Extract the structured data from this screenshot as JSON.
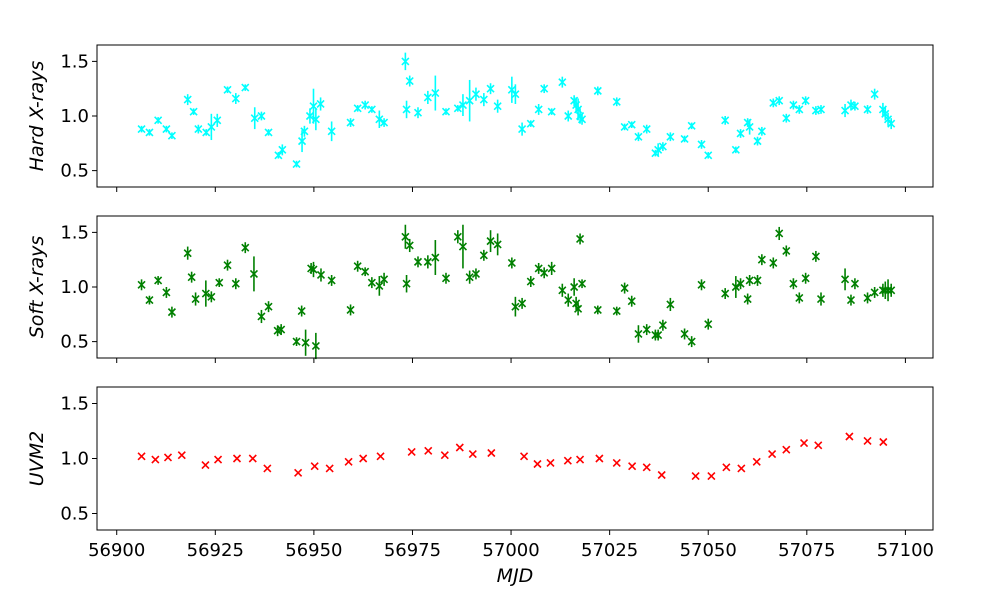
{
  "chart_data": [
    {
      "type": "scatter",
      "panel": "hard-xrays",
      "ylabel": "Hard X-rays",
      "xlabel": "",
      "color": "#00ffff",
      "xlim": [
        56895,
        57107
      ],
      "ylim": [
        0.35,
        1.65
      ],
      "yticks": [
        0.5,
        1.0,
        1.5
      ],
      "ytick_labels": [
        "0.5",
        "1.0",
        "1.5"
      ],
      "grid": false,
      "series": [
        {
          "x": [
            56906.3,
            56908.3,
            56910.5,
            56912.6,
            56914,
            56918,
            56919.5,
            56920.7,
            56922.7,
            56924,
            56925.5,
            56928.1,
            56930.2,
            56932.6,
            56935,
            56936.7,
            56938.5,
            56941,
            56942,
            56945.6,
            56947,
            56947.6,
            56949,
            56949.9,
            56950.5,
            56951.7,
            56954.5,
            56959.3,
            56961.1,
            56963,
            56964.7,
            56966.6,
            56967.8,
            56973.2,
            56973.5,
            56974.3,
            56976.4,
            56978.9,
            56980.8,
            56983.5,
            56986.5,
            56987.8,
            56989.5,
            56991.1,
            56993.1,
            56994.8,
            56996.6,
            57000.2,
            57001.1,
            57002.8,
            57005,
            57007,
            57008.4,
            57010.3,
            57013,
            57014.5,
            57016,
            57016.5,
            57017,
            57017.5,
            57018,
            57022,
            57026.8,
            57028.8,
            57030.6,
            57032.3,
            57034.4,
            57036.6,
            57037.3,
            57038.5,
            57040.4,
            57044,
            57045.8,
            57048.3,
            57050,
            57054.3,
            57057,
            57058.2,
            57060,
            57060.5,
            57062.5,
            57063.6,
            57066.5,
            57068,
            57069.8,
            57071.6,
            57073.1,
            57074.7,
            57077.3,
            57078.6,
            57084.7,
            57086.2,
            57087.2,
            57090.4,
            57092.2,
            57094.3,
            57094.9,
            57095.6,
            57096.4
          ],
          "y": [
            0.88,
            0.85,
            0.96,
            0.88,
            0.82,
            1.15,
            1.04,
            0.88,
            0.85,
            0.9,
            0.96,
            1.24,
            1.16,
            1.26,
            0.98,
            1.0,
            0.85,
            0.64,
            0.69,
            0.56,
            0.77,
            0.86,
            1.0,
            1.09,
            0.97,
            1.11,
            0.86,
            0.94,
            1.07,
            1.1,
            1.06,
            0.97,
            0.94,
            1.5,
            1.06,
            1.32,
            1.03,
            1.17,
            1.21,
            1.04,
            1.07,
            1.1,
            1.14,
            1.2,
            1.15,
            1.25,
            1.09,
            1.24,
            1.2,
            0.88,
            0.93,
            1.06,
            1.25,
            1.04,
            1.31,
            1.0,
            1.14,
            1.1,
            1.06,
            1.0,
            0.97,
            1.23,
            1.13,
            0.9,
            0.92,
            0.81,
            0.88,
            0.66,
            0.69,
            0.72,
            0.81,
            0.79,
            0.91,
            0.74,
            0.64,
            0.96,
            0.69,
            0.84,
            0.94,
            0.9,
            0.77,
            0.86,
            1.12,
            1.14,
            0.98,
            1.1,
            1.06,
            1.14,
            1.05,
            1.06,
            1.05,
            1.1,
            1.09,
            1.06,
            1.2,
            1.06,
            1.02,
            0.97,
            0.93
          ],
          "yerr": [
            0.03,
            0.03,
            0.03,
            0.03,
            0.03,
            0.05,
            0.03,
            0.04,
            0.03,
            0.12,
            0.06,
            0.03,
            0.05,
            0.03,
            0.1,
            0.04,
            0.03,
            0.03,
            0.05,
            0.03,
            0.1,
            0.05,
            0.07,
            0.16,
            0.1,
            0.06,
            0.09,
            0.04,
            0.03,
            0.04,
            0.03,
            0.08,
            0.04,
            0.08,
            0.08,
            0.05,
            0.05,
            0.06,
            0.16,
            0.03,
            0.03,
            0.1,
            0.19,
            0.06,
            0.06,
            0.05,
            0.06,
            0.12,
            0.09,
            0.06,
            0.03,
            0.05,
            0.04,
            0.03,
            0.05,
            0.05,
            0.05,
            0.07,
            0.1,
            0.07,
            0.05,
            0.04,
            0.04,
            0.03,
            0.03,
            0.04,
            0.04,
            0.03,
            0.06,
            0.04,
            0.04,
            0.03,
            0.03,
            0.04,
            0.03,
            0.04,
            0.03,
            0.04,
            0.04,
            0.07,
            0.04,
            0.04,
            0.04,
            0.04,
            0.04,
            0.04,
            0.04,
            0.04,
            0.04,
            0.04,
            0.06,
            0.05,
            0.04,
            0.04,
            0.05,
            0.06,
            0.06,
            0.06,
            0.05
          ]
        }
      ]
    },
    {
      "type": "scatter",
      "panel": "soft-xrays",
      "ylabel": "Soft X-rays",
      "xlabel": "",
      "color": "#008000",
      "xlim": [
        56895,
        57107
      ],
      "ylim": [
        0.35,
        1.65
      ],
      "yticks": [
        0.5,
        1.0,
        1.5
      ],
      "ytick_labels": [
        "0.5",
        "1.0",
        "1.5"
      ],
      "grid": false,
      "series": [
        {
          "x": [
            56906.3,
            56908.3,
            56910.5,
            56912.6,
            56914,
            56918,
            56919,
            56920,
            56922.6,
            56924,
            56926,
            56928.1,
            56930.2,
            56932.6,
            56934.8,
            56936.7,
            56938.5,
            56940.8,
            56941.7,
            56945.6,
            56946.9,
            56947.9,
            56949.3,
            56949.9,
            56950.5,
            56951.8,
            56954.5,
            56959.3,
            56961.1,
            56963,
            56964.7,
            56966.6,
            56967.8,
            56973.2,
            56973.5,
            56974.3,
            56976.4,
            56978.9,
            56980.8,
            56983.5,
            56986.5,
            56987.8,
            56989.5,
            56991.1,
            56993.1,
            56994.8,
            56996.6,
            57000.2,
            57001.1,
            57002.8,
            57005,
            57007,
            57008.4,
            57010.3,
            57013,
            57014.5,
            57016,
            57016.5,
            57017,
            57017.5,
            57018,
            57022,
            57026.8,
            57028.8,
            57030.6,
            57032.3,
            57034.4,
            57036.6,
            57037.3,
            57038.5,
            57040.4,
            57044,
            57045.8,
            57048.3,
            57050,
            57054.3,
            57057,
            57058.2,
            57060,
            57060.5,
            57062.5,
            57063.6,
            57066.5,
            57068,
            57069.8,
            57071.6,
            57073.1,
            57074.7,
            57077.3,
            57078.6,
            57084.7,
            57086.2,
            57087.2,
            57090.4,
            57092.2,
            57094.3,
            57094.9,
            57095.6,
            57096.4
          ],
          "y": [
            1.02,
            0.88,
            1.06,
            0.95,
            0.77,
            1.31,
            1.09,
            0.89,
            0.94,
            0.91,
            1.04,
            1.2,
            1.03,
            1.36,
            1.12,
            0.73,
            0.82,
            0.6,
            0.61,
            0.5,
            0.78,
            0.49,
            1.17,
            1.16,
            0.46,
            1.11,
            1.06,
            0.79,
            1.19,
            1.14,
            1.04,
            1.01,
            1.07,
            1.46,
            1.03,
            1.38,
            1.23,
            1.23,
            1.27,
            1.08,
            1.46,
            1.37,
            1.09,
            1.12,
            1.29,
            1.42,
            1.39,
            1.22,
            0.82,
            0.85,
            1.05,
            1.17,
            1.13,
            1.17,
            0.97,
            0.88,
            1.0,
            0.85,
            0.8,
            1.44,
            1.03,
            0.79,
            0.78,
            0.99,
            0.87,
            0.57,
            0.61,
            0.56,
            0.56,
            0.65,
            0.84,
            0.57,
            0.5,
            1.02,
            0.66,
            0.94,
            1.0,
            1.03,
            0.89,
            1.06,
            1.06,
            1.25,
            1.22,
            1.49,
            1.33,
            1.03,
            0.9,
            1.08,
            1.28,
            0.89,
            1.07,
            0.88,
            1.03,
            0.9,
            0.95,
            0.97,
            0.97,
            0.97,
            0.97
          ],
          "yerr": [
            0.05,
            0.04,
            0.04,
            0.05,
            0.05,
            0.06,
            0.05,
            0.06,
            0.12,
            0.05,
            0.04,
            0.05,
            0.05,
            0.05,
            0.16,
            0.06,
            0.05,
            0.05,
            0.05,
            0.04,
            0.05,
            0.12,
            0.05,
            0.07,
            0.12,
            0.06,
            0.05,
            0.05,
            0.05,
            0.04,
            0.05,
            0.09,
            0.06,
            0.11,
            0.08,
            0.06,
            0.05,
            0.06,
            0.16,
            0.05,
            0.06,
            0.2,
            0.06,
            0.05,
            0.05,
            0.1,
            0.1,
            0.05,
            0.09,
            0.05,
            0.05,
            0.05,
            0.05,
            0.06,
            0.06,
            0.06,
            0.08,
            0.06,
            0.06,
            0.05,
            0.04,
            0.04,
            0.04,
            0.05,
            0.05,
            0.08,
            0.05,
            0.05,
            0.05,
            0.05,
            0.06,
            0.05,
            0.05,
            0.05,
            0.05,
            0.05,
            0.1,
            0.05,
            0.05,
            0.05,
            0.05,
            0.05,
            0.05,
            0.06,
            0.05,
            0.05,
            0.05,
            0.05,
            0.05,
            0.06,
            0.1,
            0.05,
            0.05,
            0.05,
            0.05,
            0.06,
            0.08,
            0.1,
            0.06
          ]
        }
      ]
    },
    {
      "type": "scatter",
      "panel": "uvm2",
      "ylabel": "UVM2",
      "xlabel": "MJD",
      "color": "#ff0000",
      "xlim": [
        56895,
        57107
      ],
      "xticks": [
        56900,
        56925,
        56950,
        56975,
        57000,
        57025,
        57050,
        57075,
        57100
      ],
      "xtick_labels": [
        "56900",
        "56925",
        "56950",
        "56975",
        "57000",
        "57025",
        "57050",
        "57075",
        "57100"
      ],
      "ylim": [
        0.35,
        1.65
      ],
      "yticks": [
        0.5,
        1.0,
        1.5
      ],
      "ytick_labels": [
        "0.5",
        "1.0",
        "1.5"
      ],
      "grid": false,
      "series": [
        {
          "x": [
            56906.3,
            56909.8,
            56913,
            56916.5,
            56922.5,
            56925.7,
            56930.5,
            56934.5,
            56938.2,
            56946,
            56950.2,
            56954,
            56958.8,
            56962.5,
            56966.9,
            56974.8,
            56979,
            56983.2,
            56987,
            56990.3,
            56995,
            57003.3,
            57006.7,
            57010,
            57014.4,
            57017.5,
            57022.4,
            57026.8,
            57030.7,
            57034.4,
            57038.2,
            57046.8,
            57050.8,
            57054.6,
            57058.4,
            57062.3,
            57066.2,
            57069.8,
            57074.3,
            57077.9,
            57085.8,
            57090.4,
            57094.4
          ],
          "y": [
            1.02,
            0.99,
            1.01,
            1.03,
            0.94,
            0.99,
            1.0,
            1.0,
            0.91,
            0.87,
            0.93,
            0.91,
            0.97,
            1.0,
            1.02,
            1.06,
            1.07,
            1.03,
            1.1,
            1.04,
            1.05,
            1.02,
            0.95,
            0.96,
            0.98,
            0.99,
            1.0,
            0.96,
            0.93,
            0.92,
            0.85,
            0.84,
            0.84,
            0.92,
            0.91,
            0.97,
            1.04,
            1.08,
            1.14,
            1.12,
            1.2,
            1.16,
            1.15
          ]
        }
      ]
    }
  ]
}
